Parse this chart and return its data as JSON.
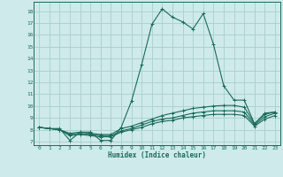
{
  "xlabel": "Humidex (Indice chaleur)",
  "background_color": "#ceeaea",
  "grid_color": "#aacece",
  "line_color": "#1a6b5a",
  "xlim": [
    -0.5,
    23.5
  ],
  "ylim": [
    6.7,
    18.8
  ],
  "yticks": [
    7,
    8,
    9,
    10,
    11,
    12,
    13,
    14,
    15,
    16,
    17,
    18
  ],
  "xticks": [
    0,
    1,
    2,
    3,
    4,
    5,
    6,
    7,
    8,
    9,
    10,
    11,
    12,
    13,
    14,
    15,
    16,
    17,
    18,
    19,
    20,
    21,
    22,
    23
  ],
  "series": [
    [
      8.2,
      8.1,
      8.1,
      7.1,
      7.8,
      7.8,
      7.1,
      7.1,
      8.2,
      10.4,
      13.5,
      16.9,
      18.2,
      17.5,
      17.1,
      16.5,
      17.8,
      15.2,
      11.7,
      10.5,
      10.5,
      8.5,
      9.4,
      9.5
    ],
    [
      8.2,
      8.1,
      8.0,
      7.7,
      7.8,
      7.7,
      7.6,
      7.6,
      8.1,
      8.3,
      8.6,
      8.9,
      9.2,
      9.4,
      9.6,
      9.8,
      9.9,
      10.0,
      10.05,
      10.05,
      9.9,
      8.5,
      9.3,
      9.5
    ],
    [
      8.2,
      8.1,
      8.0,
      7.6,
      7.7,
      7.6,
      7.5,
      7.5,
      7.9,
      8.1,
      8.4,
      8.7,
      8.9,
      9.0,
      9.2,
      9.4,
      9.5,
      9.6,
      9.6,
      9.6,
      9.5,
      8.4,
      9.1,
      9.4
    ],
    [
      8.2,
      8.1,
      8.0,
      7.5,
      7.6,
      7.5,
      7.4,
      7.4,
      7.8,
      8.0,
      8.2,
      8.5,
      8.7,
      8.8,
      9.0,
      9.1,
      9.2,
      9.3,
      9.3,
      9.3,
      9.2,
      8.3,
      8.9,
      9.2
    ]
  ]
}
